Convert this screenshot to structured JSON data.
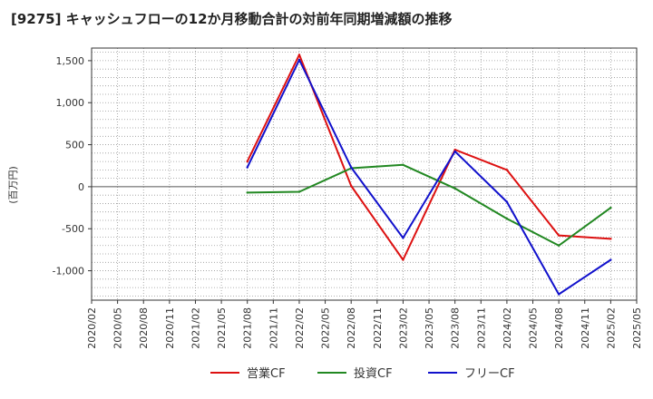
{
  "chart_data": {
    "type": "line",
    "title": "[9275]  キャッシュフローの12か月移動合計の対前年同期増減額の推移",
    "ylabel": "(百万円)",
    "xlabel": "",
    "ylim": [
      -1350,
      1650
    ],
    "yticks": [
      1500,
      1000,
      500,
      0,
      -500,
      -1000
    ],
    "ytick_labels": [
      "1,500",
      "1,000",
      "500",
      "0",
      "-500",
      "-1,000"
    ],
    "xticks": [
      "2020/02",
      "2020/05",
      "2020/08",
      "2020/11",
      "2021/02",
      "2021/05",
      "2021/08",
      "2021/11",
      "2022/02",
      "2022/05",
      "2022/08",
      "2022/11",
      "2023/02",
      "2023/05",
      "2023/08",
      "2023/11",
      "2024/02",
      "2024/05",
      "2024/08",
      "2024/11",
      "2025/02",
      "2025/05"
    ],
    "grid": true,
    "legend_position": "bottom",
    "series": [
      {
        "name": "営業CF",
        "color": "#dd1111",
        "x": [
          "2021/08",
          "2022/02",
          "2022/08",
          "2023/02",
          "2023/08",
          "2024/02",
          "2024/08",
          "2025/02"
        ],
        "values": [
          300,
          1570,
          10,
          -870,
          440,
          200,
          -580,
          -620
        ]
      },
      {
        "name": "投資CF",
        "color": "#228822",
        "x": [
          "2021/08",
          "2022/02",
          "2022/08",
          "2023/02",
          "2023/08",
          "2024/02",
          "2024/08",
          "2025/02"
        ],
        "values": [
          -70,
          -60,
          220,
          260,
          -20,
          -380,
          -700,
          -250
        ]
      },
      {
        "name": "フリーCF",
        "color": "#1111cc",
        "x": [
          "2021/08",
          "2022/02",
          "2022/08",
          "2023/02",
          "2023/08",
          "2024/02",
          "2024/08",
          "2025/02"
        ],
        "values": [
          230,
          1510,
          230,
          -610,
          420,
          -180,
          -1280,
          -870
        ]
      }
    ]
  }
}
